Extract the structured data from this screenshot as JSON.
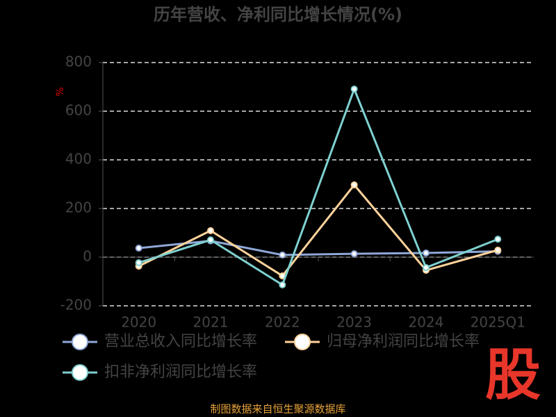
{
  "chart_data": {
    "type": "line",
    "title": "历年营收、净利同比增长情况(%)",
    "y_label": "%",
    "categories": [
      "2020",
      "2021",
      "2022",
      "2023",
      "2024",
      "2025Q1"
    ],
    "series": [
      {
        "name": "营业总收入同比增长率",
        "color": "#8fa8d8",
        "values": [
          37,
          67,
          9,
          14,
          17,
          24
        ]
      },
      {
        "name": "归母净利润同比增长率",
        "color": "#ffd39b",
        "values": [
          -37,
          109,
          -77,
          297,
          -54,
          29
        ]
      },
      {
        "name": "扣非净利润同比增长率",
        "color": "#7fd0d0",
        "values": [
          -23,
          71,
          -114,
          691,
          -43,
          74
        ]
      }
    ],
    "ylim": [
      -200,
      800
    ],
    "yticks": [
      -200,
      0,
      200,
      400,
      600,
      800
    ],
    "grid": true
  },
  "footer": "制图数据来自恒生聚源数据库",
  "watermark": "股"
}
